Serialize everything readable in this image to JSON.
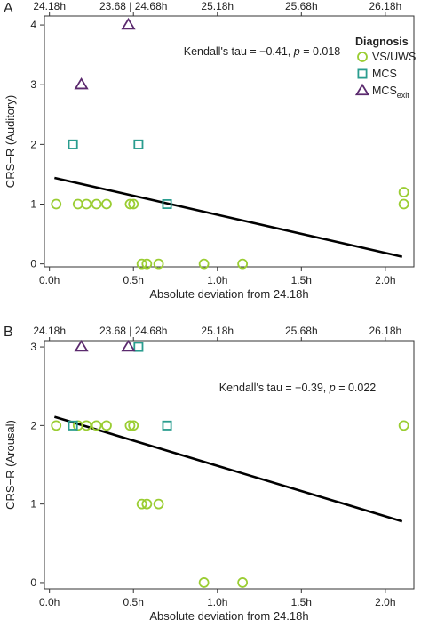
{
  "colors": {
    "vs_uws": "#9acd32",
    "mcs": "#2a9d8f",
    "mcs_exit": "#5b2a6e",
    "regression": "#000000",
    "axis": "#333333"
  },
  "legend": {
    "title": "Diagnosis",
    "entries": [
      {
        "key": "vs_uws",
        "label": "VS/UWS",
        "marker": "circle"
      },
      {
        "key": "mcs",
        "label": "MCS",
        "marker": "square"
      },
      {
        "key": "mcs_exit",
        "label": "MCS",
        "subscript": "exit",
        "marker": "triangle"
      }
    ]
  },
  "chart_data": [
    {
      "panel": "A",
      "type": "scatter",
      "xlabel": "Absolute deviation from 24.18h",
      "ylabel": "CRS−R (Auditory)",
      "xlim": [
        -0.03,
        2.17
      ],
      "ylim": [
        -0.05,
        4.15
      ],
      "x_ticks": [
        "0.0h",
        "0.5h",
        "1.0h",
        "1.5h",
        "2.0h"
      ],
      "x_tick_values": [
        0,
        0.5,
        1.0,
        1.5,
        2.0
      ],
      "top_ticks": [
        "24.18h",
        "23.68 | 24.68h",
        "25.18h",
        "25.68h",
        "26.18h"
      ],
      "top_tick_values": [
        0,
        0.5,
        1.0,
        1.5,
        2.0
      ],
      "y_ticks": [
        "0",
        "1",
        "2",
        "3",
        "4"
      ],
      "y_tick_values": [
        0,
        1,
        2,
        3,
        4
      ],
      "annotation": {
        "prefix": "Kendall's tau = −0.41, ",
        "p_symbol": "p",
        "suffix": " = 0.018"
      },
      "regression": {
        "x": [
          0.03,
          2.1
        ],
        "y": [
          1.44,
          0.12
        ]
      },
      "series": [
        {
          "key": "vs_uws",
          "name": "VS/UWS",
          "points": [
            [
              0.04,
              1
            ],
            [
              0.17,
              1
            ],
            [
              0.22,
              1
            ],
            [
              0.28,
              1
            ],
            [
              0.34,
              1
            ],
            [
              0.48,
              1
            ],
            [
              0.5,
              1
            ],
            [
              0.55,
              0
            ],
            [
              0.58,
              0
            ],
            [
              0.65,
              0
            ],
            [
              0.92,
              0
            ],
            [
              1.15,
              0
            ],
            [
              2.11,
              1.2
            ],
            [
              2.11,
              1
            ]
          ]
        },
        {
          "key": "mcs",
          "name": "MCS",
          "points": [
            [
              0.14,
              2
            ],
            [
              0.53,
              2
            ],
            [
              0.7,
              1
            ]
          ]
        },
        {
          "key": "mcs_exit",
          "name": "MCS exit",
          "points": [
            [
              0.47,
              4
            ],
            [
              0.19,
              3
            ]
          ]
        }
      ]
    },
    {
      "panel": "B",
      "type": "scatter",
      "xlabel": "Absolute deviation from 24.18h",
      "ylabel": "CRS−R (Arousal)",
      "xlim": [
        -0.03,
        2.17
      ],
      "ylim": [
        -0.08,
        3.08
      ],
      "x_ticks": [
        "0.0h",
        "0.5h",
        "1.0h",
        "1.5h",
        "2.0h"
      ],
      "x_tick_values": [
        0,
        0.5,
        1.0,
        1.5,
        2.0
      ],
      "top_ticks": [
        "24.18h",
        "23.68 | 24.68h",
        "25.18h",
        "25.68h",
        "26.18h"
      ],
      "top_tick_values": [
        0,
        0.5,
        1.0,
        1.5,
        2.0
      ],
      "y_ticks": [
        "0",
        "1",
        "2",
        "3"
      ],
      "y_tick_values": [
        0,
        1,
        2,
        3
      ],
      "annotation": {
        "prefix": "Kendall's tau = −0.39, ",
        "p_symbol": "p",
        "suffix": " = 0.022"
      },
      "regression": {
        "x": [
          0.03,
          2.1
        ],
        "y": [
          2.11,
          0.78
        ]
      },
      "series": [
        {
          "key": "vs_uws",
          "name": "VS/UWS",
          "points": [
            [
              0.04,
              2
            ],
            [
              0.17,
              2
            ],
            [
              0.22,
              2
            ],
            [
              0.28,
              2
            ],
            [
              0.34,
              2
            ],
            [
              0.48,
              2
            ],
            [
              0.5,
              2
            ],
            [
              0.55,
              1
            ],
            [
              0.58,
              1
            ],
            [
              0.65,
              1
            ],
            [
              0.92,
              0
            ],
            [
              1.15,
              0
            ],
            [
              2.11,
              2
            ]
          ]
        },
        {
          "key": "mcs",
          "name": "MCS",
          "points": [
            [
              0.14,
              2
            ],
            [
              0.53,
              3
            ],
            [
              0.7,
              2
            ]
          ]
        },
        {
          "key": "mcs_exit",
          "name": "MCS exit",
          "points": [
            [
              0.19,
              3
            ],
            [
              0.47,
              3
            ]
          ]
        }
      ]
    }
  ]
}
